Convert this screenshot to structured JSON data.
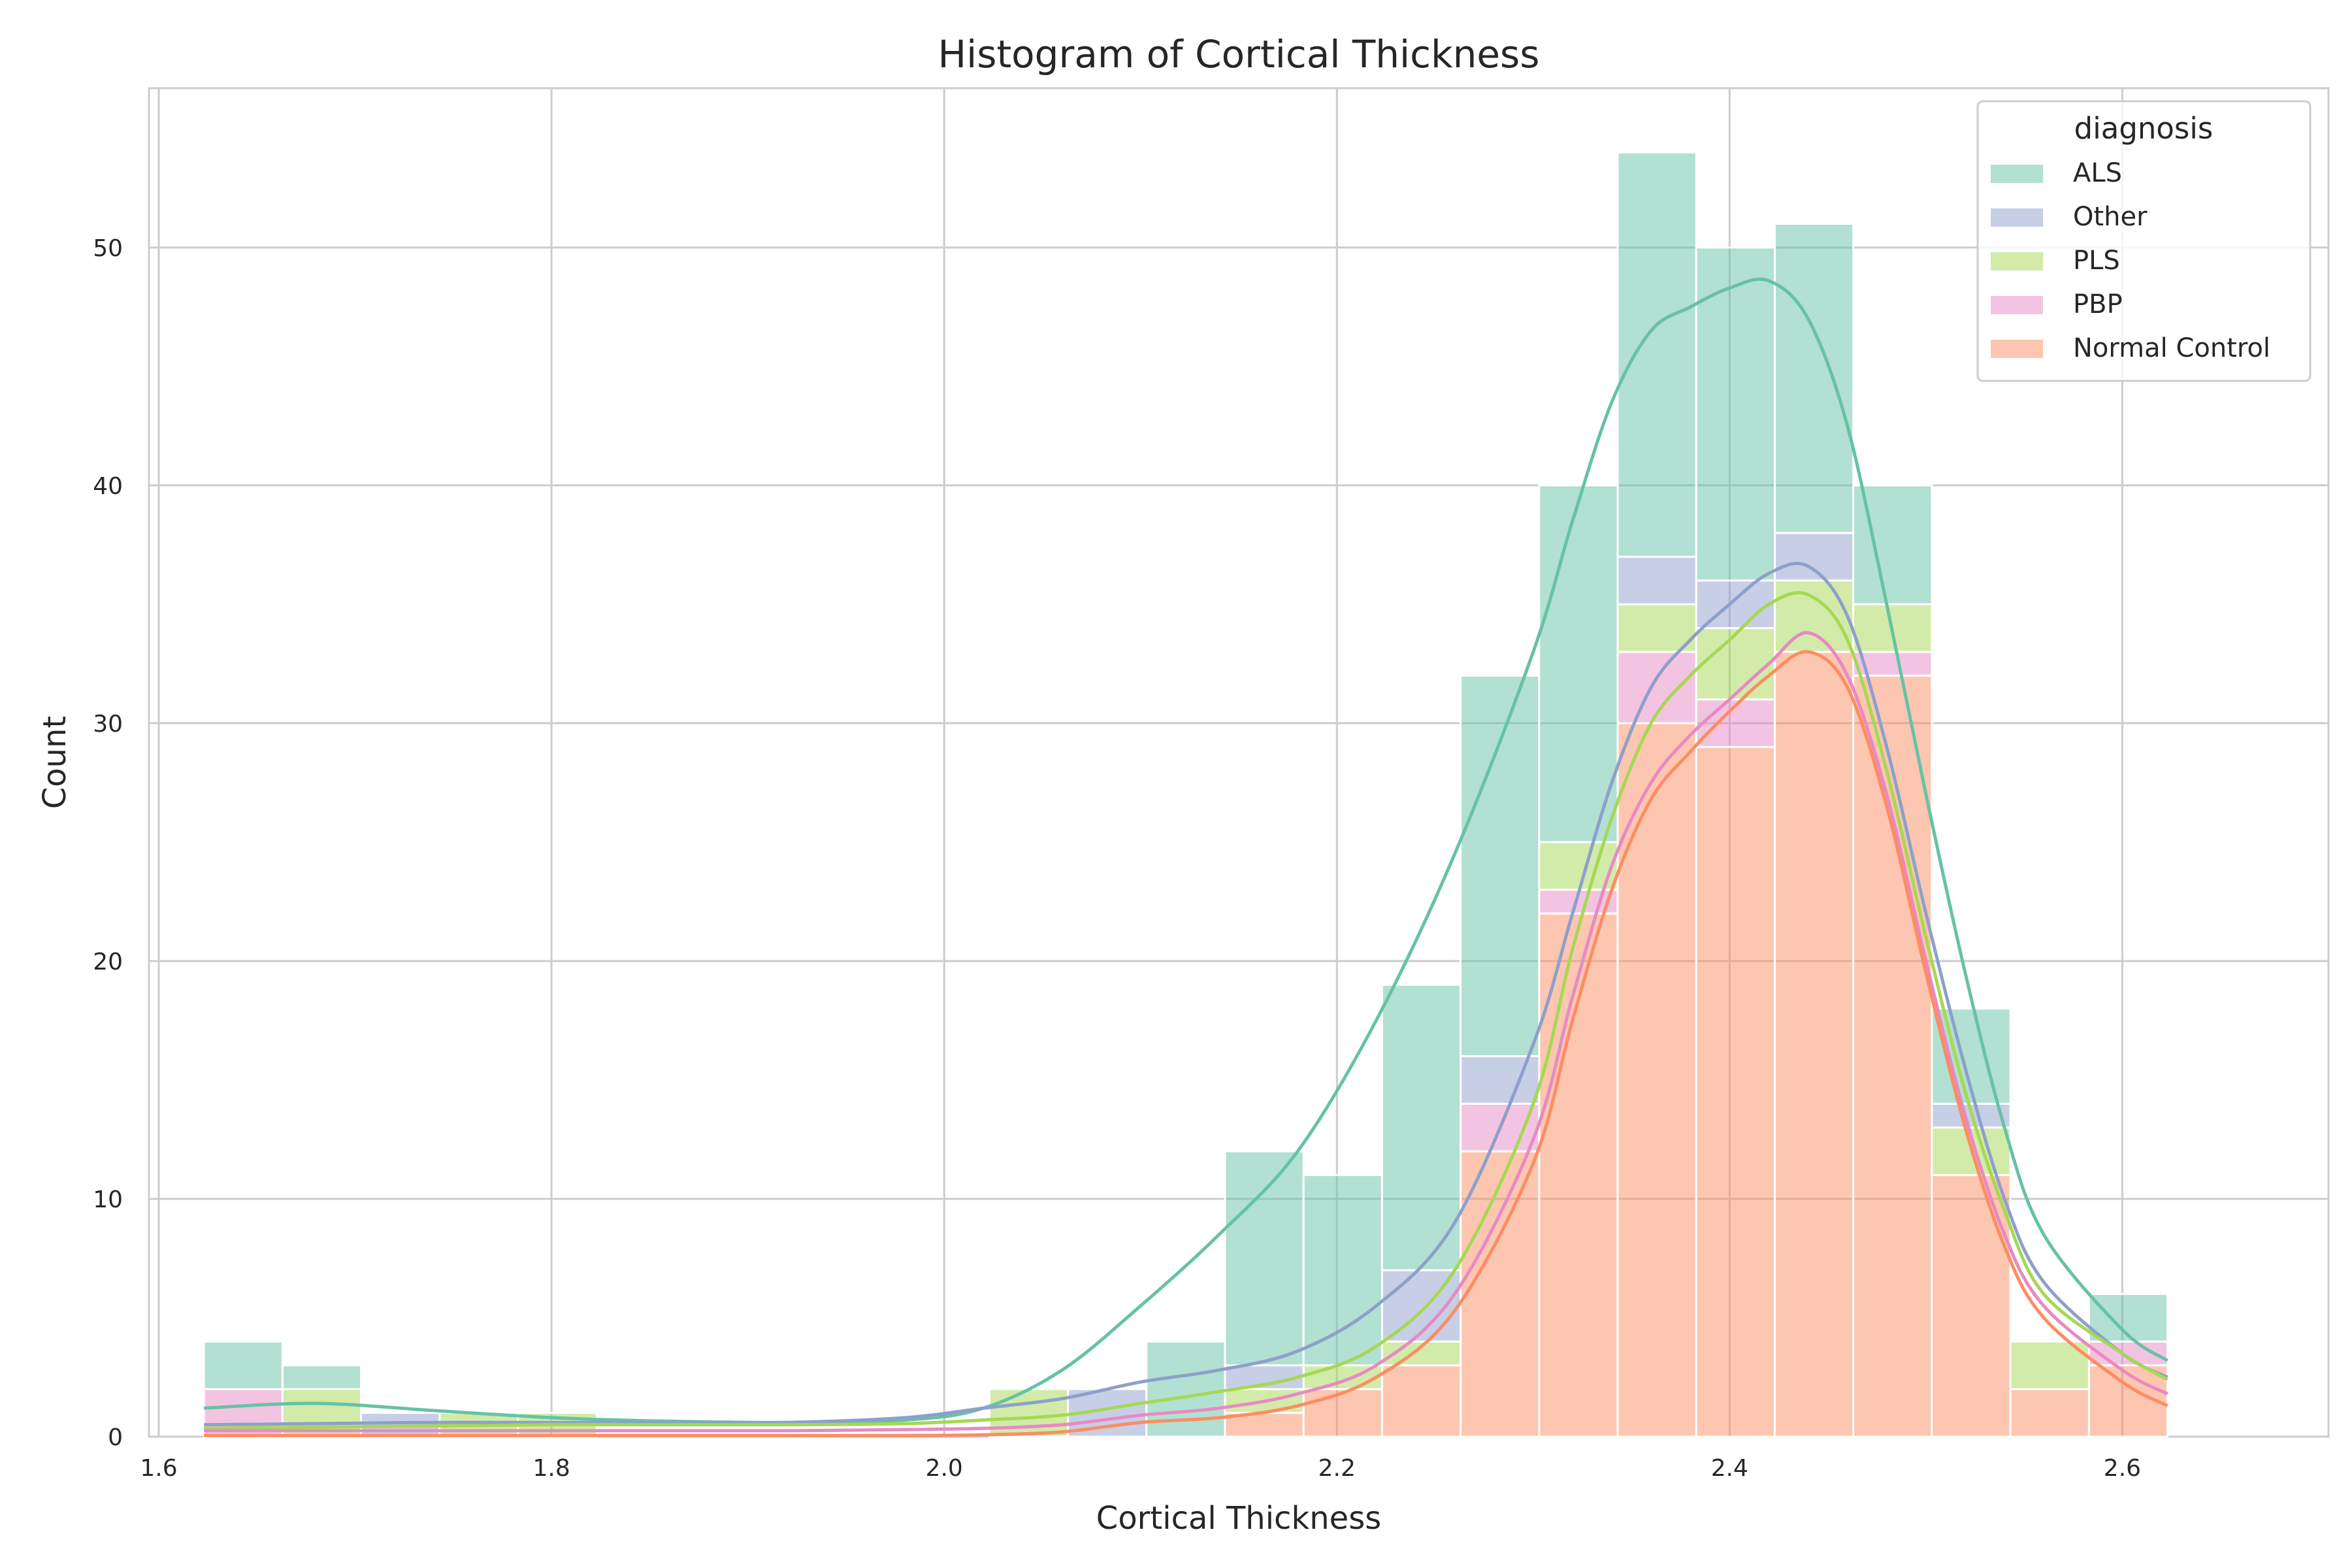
{
  "chart_data": {
    "type": "histogram",
    "stacked": true,
    "kde": true,
    "title": "Histogram of Cortical Thickness",
    "xlabel": "Cortical Thickness",
    "ylabel": "Count",
    "xlim": [
      1.595,
      2.705
    ],
    "ylim": [
      0,
      56.7
    ],
    "xticks": [
      "1.6",
      "1.8",
      "2.0",
      "2.2",
      "2.4",
      "2.6"
    ],
    "yticks": [
      "0",
      "10",
      "20",
      "30",
      "40",
      "50"
    ],
    "grid": true,
    "bin_start": 1.623,
    "bin_width": 0.04,
    "legend": {
      "title": "diagnosis",
      "position": "top-right"
    },
    "series": [
      {
        "name": "Normal Control",
        "color": "#fc8d62",
        "values": [
          0,
          0,
          0,
          0,
          0,
          0,
          0,
          0,
          0,
          0,
          0,
          0,
          0,
          1,
          2,
          3,
          12,
          22,
          30,
          29,
          33,
          32,
          11,
          2,
          3
        ]
      },
      {
        "name": "PBP",
        "color": "#e78ac3",
        "values": [
          2,
          0,
          0,
          0,
          0,
          0,
          0,
          0,
          0,
          0,
          0,
          0,
          0,
          0,
          0,
          0,
          2,
          1,
          3,
          2,
          0,
          1,
          0,
          0,
          1
        ]
      },
      {
        "name": "PLS",
        "color": "#a6d854",
        "values": [
          0,
          2,
          0,
          1,
          1,
          0,
          0,
          0,
          0,
          0,
          2,
          0,
          0,
          1,
          1,
          1,
          0,
          2,
          2,
          3,
          3,
          2,
          2,
          2,
          0
        ]
      },
      {
        "name": "Other",
        "color": "#8da0cb",
        "values": [
          0,
          0,
          1,
          0,
          0,
          0,
          0,
          0,
          0,
          0,
          0,
          2,
          0,
          1,
          0,
          3,
          2,
          0,
          2,
          2,
          2,
          0,
          1,
          0,
          0
        ]
      },
      {
        "name": "ALS",
        "color": "#66c2a5",
        "values": [
          2,
          1,
          0,
          0,
          0,
          0,
          0,
          0,
          0,
          0,
          0,
          0,
          4,
          9,
          8,
          12,
          16,
          15,
          17,
          14,
          13,
          5,
          4,
          0,
          2
        ]
      }
    ],
    "kde_curves": [
      {
        "name": "ALS",
        "color": "#66c2a5",
        "x": [
          1.623,
          1.68,
          1.74,
          1.8,
          1.86,
          1.92,
          1.98,
          2.02,
          2.06,
          2.1,
          2.14,
          2.18,
          2.22,
          2.26,
          2.3,
          2.32,
          2.34,
          2.36,
          2.38,
          2.4,
          2.42,
          2.44,
          2.46,
          2.48,
          2.5,
          2.52,
          2.54,
          2.56,
          2.6,
          2.623
        ],
        "y": [
          1.2,
          1.4,
          1.1,
          0.8,
          0.65,
          0.6,
          0.7,
          1.2,
          2.8,
          5.5,
          8.5,
          12,
          17.5,
          24.5,
          33,
          38.5,
          43.5,
          46.5,
          47.5,
          48.3,
          48.6,
          47,
          42.5,
          35,
          27,
          19.5,
          13,
          8.5,
          4.5,
          3.2
        ]
      },
      {
        "name": "Other",
        "color": "#8da0cb",
        "x": [
          1.623,
          1.68,
          1.74,
          1.8,
          1.86,
          1.92,
          1.98,
          2.02,
          2.06,
          2.1,
          2.14,
          2.18,
          2.22,
          2.26,
          2.3,
          2.32,
          2.34,
          2.36,
          2.38,
          2.4,
          2.42,
          2.44,
          2.46,
          2.48,
          2.5,
          2.52,
          2.54,
          2.56,
          2.6,
          2.623
        ],
        "y": [
          0.5,
          0.55,
          0.6,
          0.6,
          0.6,
          0.6,
          0.8,
          1.2,
          1.6,
          2.3,
          2.8,
          3.6,
          5.5,
          9,
          16.5,
          22,
          27.5,
          31.5,
          33.5,
          35,
          36.3,
          36.6,
          34.5,
          29,
          22,
          15.5,
          10,
          6.5,
          3.5,
          2.5
        ]
      },
      {
        "name": "PLS",
        "color": "#a6d854",
        "x": [
          1.623,
          1.68,
          1.74,
          1.8,
          1.86,
          1.92,
          1.98,
          2.02,
          2.06,
          2.1,
          2.14,
          2.18,
          2.22,
          2.26,
          2.3,
          2.32,
          2.34,
          2.36,
          2.38,
          2.4,
          2.42,
          2.44,
          2.46,
          2.48,
          2.5,
          2.52,
          2.54,
          2.56,
          2.6,
          2.623
        ],
        "y": [
          0.35,
          0.4,
          0.45,
          0.5,
          0.5,
          0.5,
          0.55,
          0.7,
          0.9,
          1.4,
          1.9,
          2.5,
          3.8,
          7,
          14,
          20.5,
          26,
          30,
          32,
          33.5,
          35,
          35.4,
          33.5,
          28,
          21,
          14.5,
          9.5,
          6,
          3.5,
          2.4
        ]
      },
      {
        "name": "PBP",
        "color": "#e78ac3",
        "x": [
          1.623,
          1.68,
          1.74,
          1.8,
          1.86,
          1.92,
          1.98,
          2.02,
          2.06,
          2.1,
          2.14,
          2.18,
          2.22,
          2.26,
          2.3,
          2.32,
          2.34,
          2.36,
          2.38,
          2.4,
          2.42,
          2.44,
          2.46,
          2.48,
          2.5,
          2.52,
          2.54,
          2.56,
          2.6,
          2.623
        ],
        "y": [
          0.25,
          0.25,
          0.25,
          0.25,
          0.25,
          0.25,
          0.3,
          0.35,
          0.5,
          0.9,
          1.2,
          1.8,
          3,
          6,
          12.5,
          18.5,
          24,
          27.5,
          29.5,
          31,
          32.5,
          33.8,
          32,
          27,
          20,
          13.5,
          8.5,
          5.5,
          2.8,
          1.8
        ]
      },
      {
        "name": "Normal Control",
        "color": "#fc8d62",
        "x": [
          1.623,
          1.68,
          1.74,
          1.8,
          1.86,
          1.92,
          1.98,
          2.02,
          2.06,
          2.1,
          2.14,
          2.18,
          2.22,
          2.26,
          2.3,
          2.32,
          2.34,
          2.36,
          2.38,
          2.4,
          2.42,
          2.44,
          2.46,
          2.48,
          2.5,
          2.52,
          2.54,
          2.56,
          2.6,
          2.623
        ],
        "y": [
          0.05,
          0.05,
          0.05,
          0.05,
          0.05,
          0.05,
          0.05,
          0.08,
          0.2,
          0.6,
          0.8,
          1.3,
          2.5,
          5.3,
          11.5,
          17.5,
          23,
          26.8,
          28.8,
          30.5,
          32,
          33,
          31.5,
          26.5,
          19.5,
          13,
          8,
          5,
          2.3,
          1.3
        ]
      }
    ]
  }
}
